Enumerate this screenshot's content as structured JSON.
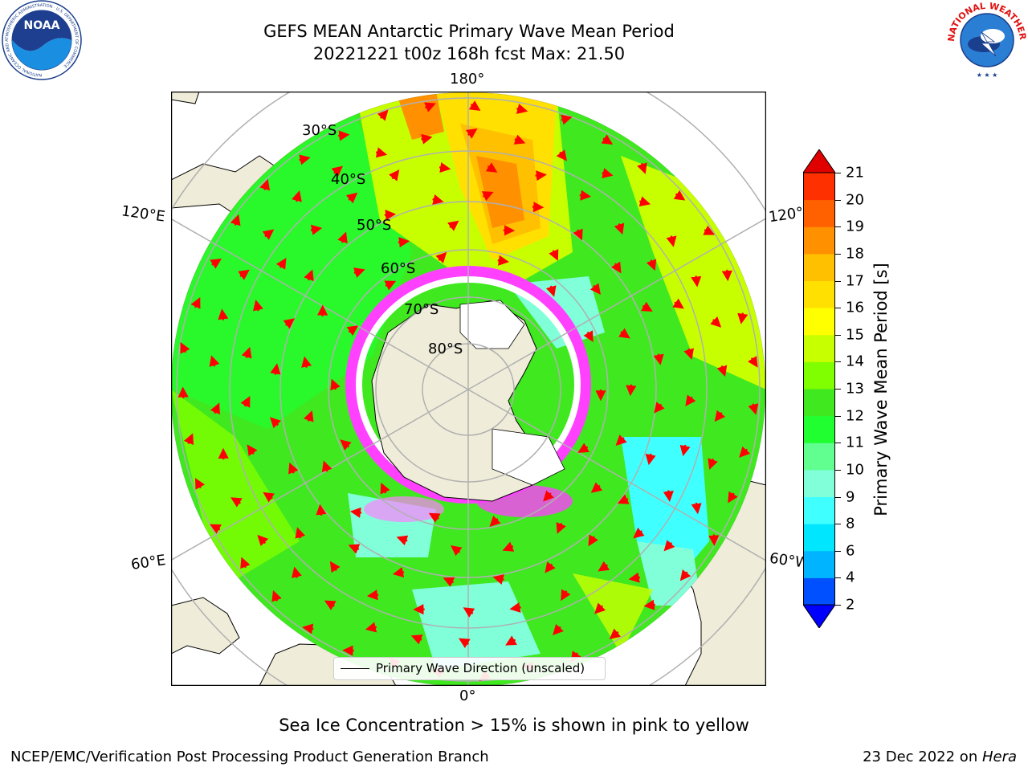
{
  "title": {
    "line1": "GEFS MEAN Antarctic Primary Wave Mean Period",
    "line2": "20221221 t00z 168h fcst   Max: 21.50"
  },
  "logos": {
    "noaa": {
      "text": "NOAA",
      "ring_text": "NATIONAL OCEANIC AND ATMOSPHERIC ADMINISTRATION · U.S. DEPARTMENT OF COMMERCE"
    },
    "nws": {
      "ring_text": "NATIONAL WEATHER SERVICE"
    }
  },
  "map": {
    "projection": "south-polar-stereographic",
    "longitude_labels": {
      "top": "180°",
      "bottom": "0°",
      "upper_left": "120°E",
      "upper_right": "120°W",
      "lower_left": "60°E",
      "lower_right": "60°W"
    },
    "latitude_labels": [
      "30°S",
      "40°S",
      "50°S",
      "60°S",
      "70°S",
      "80°S"
    ]
  },
  "legend": {
    "label": "Primary Wave Direction (unscaled)"
  },
  "colorbar": {
    "label": "Primary Wave Mean Period [s]",
    "ticks": [
      "2",
      "4",
      "6",
      "8",
      "9",
      "10",
      "11",
      "12",
      "13",
      "14",
      "15",
      "16",
      "17",
      "18",
      "19",
      "20",
      "21"
    ],
    "colors": [
      "#0050ff",
      "#00b4ff",
      "#00e6ff",
      "#40ffff",
      "#80ffd9",
      "#60ff90",
      "#20ff30",
      "#40e820",
      "#80ff00",
      "#c8ff00",
      "#ffff00",
      "#ffe000",
      "#ffc000",
      "#ff9000",
      "#ff6000",
      "#ff3000"
    ],
    "under_color": "#0000ff",
    "over_color": "#e00000"
  },
  "annotation": "Sea Ice Concentration > 15% is shown in pink to yellow",
  "footer": {
    "left": "NCEP/EMC/Verification Post Processing Product Generation Branch",
    "date": "23 Dec 2022 on ",
    "machine": "Hera"
  }
}
